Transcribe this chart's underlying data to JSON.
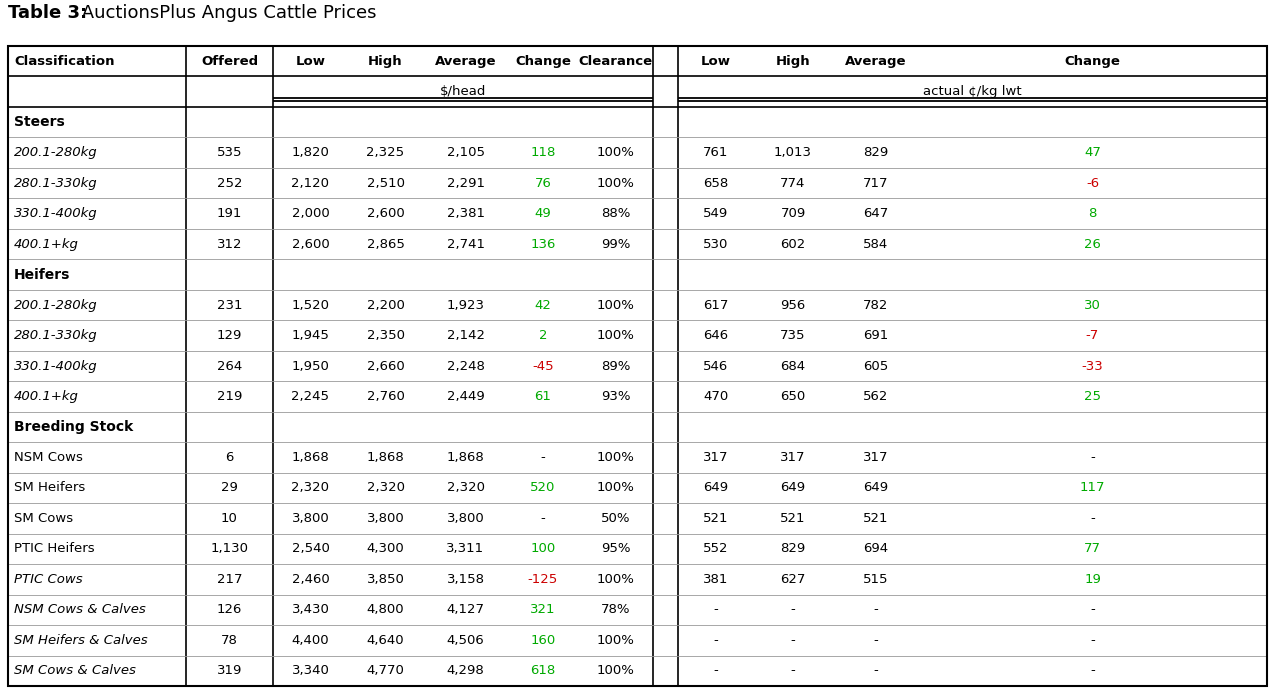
{
  "title_bold": "Table 3:",
  "title_normal": " AuctionsPlus Angus Cattle Prices",
  "sections": [
    {
      "name": "Steers",
      "rows": [
        {
          "classification": "200.1-280kg",
          "italic": true,
          "offered": "535",
          "low": "1,820",
          "high": "2,325",
          "average": "2,105",
          "change": "118",
          "change_color": "green",
          "clearance": "100%",
          "low2": "761",
          "high2": "1,013",
          "average2": "829",
          "change2": "47",
          "change2_color": "green"
        },
        {
          "classification": "280.1-330kg",
          "italic": true,
          "offered": "252",
          "low": "2,120",
          "high": "2,510",
          "average": "2,291",
          "change": "76",
          "change_color": "green",
          "clearance": "100%",
          "low2": "658",
          "high2": "774",
          "average2": "717",
          "change2": "-6",
          "change2_color": "red"
        },
        {
          "classification": "330.1-400kg",
          "italic": true,
          "offered": "191",
          "low": "2,000",
          "high": "2,600",
          "average": "2,381",
          "change": "49",
          "change_color": "green",
          "clearance": "88%",
          "low2": "549",
          "high2": "709",
          "average2": "647",
          "change2": "8",
          "change2_color": "green"
        },
        {
          "classification": "400.1+kg",
          "italic": true,
          "offered": "312",
          "low": "2,600",
          "high": "2,865",
          "average": "2,741",
          "change": "136",
          "change_color": "green",
          "clearance": "99%",
          "low2": "530",
          "high2": "602",
          "average2": "584",
          "change2": "26",
          "change2_color": "green"
        }
      ]
    },
    {
      "name": "Heifers",
      "rows": [
        {
          "classification": "200.1-280kg",
          "italic": true,
          "offered": "231",
          "low": "1,520",
          "high": "2,200",
          "average": "1,923",
          "change": "42",
          "change_color": "green",
          "clearance": "100%",
          "low2": "617",
          "high2": "956",
          "average2": "782",
          "change2": "30",
          "change2_color": "green"
        },
        {
          "classification": "280.1-330kg",
          "italic": true,
          "offered": "129",
          "low": "1,945",
          "high": "2,350",
          "average": "2,142",
          "change": "2",
          "change_color": "green",
          "clearance": "100%",
          "low2": "646",
          "high2": "735",
          "average2": "691",
          "change2": "-7",
          "change2_color": "red"
        },
        {
          "classification": "330.1-400kg",
          "italic": true,
          "offered": "264",
          "low": "1,950",
          "high": "2,660",
          "average": "2,248",
          "change": "-45",
          "change_color": "red",
          "clearance": "89%",
          "low2": "546",
          "high2": "684",
          "average2": "605",
          "change2": "-33",
          "change2_color": "red"
        },
        {
          "classification": "400.1+kg",
          "italic": true,
          "offered": "219",
          "low": "2,245",
          "high": "2,760",
          "average": "2,449",
          "change": "61",
          "change_color": "green",
          "clearance": "93%",
          "low2": "470",
          "high2": "650",
          "average2": "562",
          "change2": "25",
          "change2_color": "green"
        }
      ]
    },
    {
      "name": "Breeding Stock",
      "rows": [
        {
          "classification": "NSM Cows",
          "italic": false,
          "offered": "6",
          "low": "1,868",
          "high": "1,868",
          "average": "1,868",
          "change": "-",
          "change_color": "black",
          "clearance": "100%",
          "low2": "317",
          "high2": "317",
          "average2": "317",
          "change2": "-",
          "change2_color": "black"
        },
        {
          "classification": "SM Heifers",
          "italic": false,
          "offered": "29",
          "low": "2,320",
          "high": "2,320",
          "average": "2,320",
          "change": "520",
          "change_color": "green",
          "clearance": "100%",
          "low2": "649",
          "high2": "649",
          "average2": "649",
          "change2": "117",
          "change2_color": "green"
        },
        {
          "classification": "SM Cows",
          "italic": false,
          "offered": "10",
          "low": "3,800",
          "high": "3,800",
          "average": "3,800",
          "change": "-",
          "change_color": "black",
          "clearance": "50%",
          "low2": "521",
          "high2": "521",
          "average2": "521",
          "change2": "-",
          "change2_color": "black"
        },
        {
          "classification": "PTIC Heifers",
          "italic": false,
          "offered": "1,130",
          "low": "2,540",
          "high": "4,300",
          "average": "3,311",
          "change": "100",
          "change_color": "green",
          "clearance": "95%",
          "low2": "552",
          "high2": "829",
          "average2": "694",
          "change2": "77",
          "change2_color": "green"
        },
        {
          "classification": "PTIC Cows",
          "italic": true,
          "offered": "217",
          "low": "2,460",
          "high": "3,850",
          "average": "3,158",
          "change": "-125",
          "change_color": "red",
          "clearance": "100%",
          "low2": "381",
          "high2": "627",
          "average2": "515",
          "change2": "19",
          "change2_color": "green"
        },
        {
          "classification": "NSM Cows & Calves",
          "italic": true,
          "offered": "126",
          "low": "3,430",
          "high": "4,800",
          "average": "4,127",
          "change": "321",
          "change_color": "green",
          "clearance": "78%",
          "low2": "-",
          "high2": "-",
          "average2": "-",
          "change2": "-",
          "change2_color": "black"
        },
        {
          "classification": "SM Heifers & Calves",
          "italic": true,
          "offered": "78",
          "low": "4,400",
          "high": "4,640",
          "average": "4,506",
          "change": "160",
          "change_color": "green",
          "clearance": "100%",
          "low2": "-",
          "high2": "-",
          "average2": "-",
          "change2": "-",
          "change2_color": "black"
        },
        {
          "classification": "SM Cows & Calves",
          "italic": true,
          "offered": "319",
          "low": "3,340",
          "high": "4,770",
          "average": "4,298",
          "change": "618",
          "change_color": "green",
          "clearance": "100%",
          "low2": "-",
          "high2": "-",
          "average2": "-",
          "change2": "-",
          "change2_color": "black"
        }
      ]
    }
  ],
  "green_color": "#00AA00",
  "red_color": "#CC0000",
  "black_color": "#000000",
  "col_labels": [
    "Classification",
    "Offered",
    "Low",
    "High",
    "Average",
    "Change",
    "Clearance",
    "",
    "Low",
    "High",
    "Average",
    "Change"
  ],
  "subheader1": "$/head",
  "subheader2": "actual ¢/kg lwt"
}
